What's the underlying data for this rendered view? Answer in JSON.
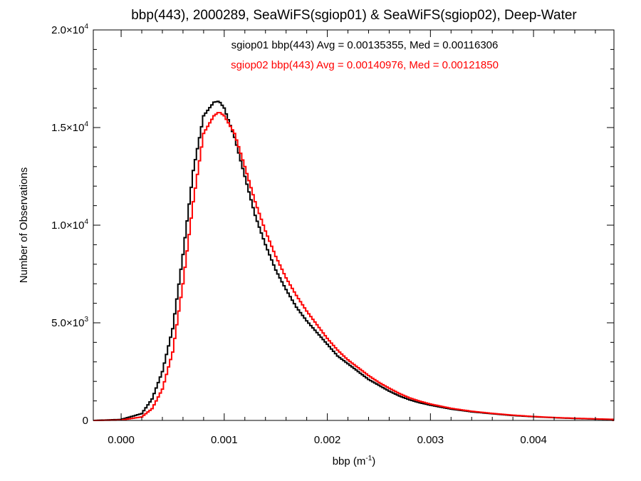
{
  "chart_data": {
    "type": "line",
    "title": "bbp(443), 2000289, SeaWiFS(sgiop01) & SeaWiFS(sgiop02), Deep-Water",
    "xlabel": {
      "base": "bbp (m",
      "sup": "-1",
      "tail": ")"
    },
    "ylabel": "Number of Observations",
    "xlim": [
      -0.00027,
      0.00478
    ],
    "ylim": [
      0,
      20000
    ],
    "xticks": [
      {
        "value": 0.0,
        "label": "0.000"
      },
      {
        "value": 0.001,
        "label": "0.001"
      },
      {
        "value": 0.002,
        "label": "0.002"
      },
      {
        "value": 0.003,
        "label": "0.003"
      },
      {
        "value": 0.004,
        "label": "0.004"
      }
    ],
    "yticks": [
      {
        "value": 0,
        "base": "0",
        "exp": ""
      },
      {
        "value": 5000,
        "base": "5.0×10",
        "exp": "3"
      },
      {
        "value": 10000,
        "base": "1.0×10",
        "exp": "4"
      },
      {
        "value": 15000,
        "base": "1.5×10",
        "exp": "4"
      },
      {
        "value": 20000,
        "base": "2.0×10",
        "exp": "4"
      }
    ],
    "grid": false,
    "legend_position": "top-center",
    "series": [
      {
        "name": "sgiop01 bbp(443) Avg = 0.00135355, Med = 0.00116306",
        "color": "#000000",
        "x": [
          -0.00027,
          0.0,
          0.0002,
          0.0003,
          0.0004,
          0.0005,
          0.0006,
          0.0007,
          0.0008,
          0.0009,
          0.00095,
          0.001,
          0.0011,
          0.0012,
          0.0013,
          0.0014,
          0.0015,
          0.0016,
          0.0017,
          0.0018,
          0.0019,
          0.002,
          0.0021,
          0.0022,
          0.0023,
          0.0024,
          0.0025,
          0.0026,
          0.0027,
          0.0028,
          0.0029,
          0.003,
          0.0032,
          0.0034,
          0.0036,
          0.0038,
          0.004,
          0.0042,
          0.0044,
          0.0046,
          0.00478
        ],
        "y": [
          0,
          50,
          350,
          1100,
          2500,
          4700,
          8500,
          12800,
          15600,
          16300,
          16350,
          16000,
          14500,
          12500,
          10500,
          9000,
          7700,
          6700,
          5800,
          5100,
          4500,
          3900,
          3300,
          2900,
          2500,
          2100,
          1800,
          1500,
          1250,
          1050,
          900,
          780,
          580,
          440,
          340,
          250,
          190,
          140,
          100,
          70,
          50
        ]
      },
      {
        "name": "sgiop02 bbp(443) Avg = 0.00140976, Med = 0.00121850",
        "color": "#ff0000",
        "x": [
          -0.00027,
          0.0,
          0.0002,
          0.0003,
          0.0004,
          0.0005,
          0.0006,
          0.0007,
          0.0008,
          0.0009,
          0.00095,
          0.001,
          0.0011,
          0.0012,
          0.0013,
          0.0014,
          0.0015,
          0.0016,
          0.0017,
          0.0018,
          0.0019,
          0.002,
          0.0021,
          0.0022,
          0.0023,
          0.0024,
          0.0025,
          0.0026,
          0.0027,
          0.0028,
          0.0029,
          0.003,
          0.0032,
          0.0034,
          0.0036,
          0.0038,
          0.004,
          0.0042,
          0.0044,
          0.0046,
          0.00478
        ],
        "y": [
          0,
          20,
          180,
          600,
          1600,
          3500,
          7000,
          11200,
          14700,
          15600,
          15800,
          15600,
          14700,
          13000,
          11200,
          9700,
          8400,
          7300,
          6400,
          5600,
          4900,
          4200,
          3600,
          3100,
          2700,
          2300,
          1950,
          1650,
          1380,
          1150,
          980,
          840,
          620,
          470,
          360,
          270,
          200,
          150,
          110,
          80,
          55
        ]
      }
    ]
  }
}
